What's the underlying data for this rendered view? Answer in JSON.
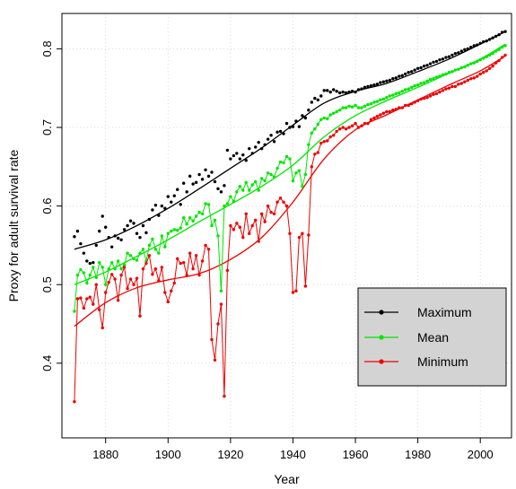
{
  "chart_data": {
    "type": "line",
    "title": "",
    "xlabel": "Year",
    "ylabel": "Proxy for adult survival rate",
    "xlim": [
      1866,
      2010
    ],
    "ylim": [
      0.305,
      0.845
    ],
    "xticks": [
      1880,
      1900,
      1920,
      1940,
      1960,
      1980,
      2000
    ],
    "yticks": [
      0.4,
      0.5,
      0.6,
      0.7,
      0.8
    ],
    "xtick_labels": [
      "1880",
      "1900",
      "1920",
      "1940",
      "1960",
      "1980",
      "2000"
    ],
    "ytick_labels": [
      "0.4",
      "0.5",
      "0.6",
      "0.7",
      "0.8"
    ],
    "grid": true,
    "legend": {
      "position": "bottom-right",
      "entries": [
        "Maximum",
        "Mean",
        "Minimum"
      ]
    },
    "series": [
      {
        "name": "Maximum",
        "color": "#000000",
        "style": "points",
        "x": [
          1870,
          1871,
          1872,
          1873,
          1874,
          1875,
          1876,
          1877,
          1878,
          1879,
          1880,
          1881,
          1882,
          1883,
          1884,
          1885,
          1886,
          1887,
          1888,
          1889,
          1890,
          1891,
          1892,
          1893,
          1894,
          1895,
          1896,
          1897,
          1898,
          1899,
          1900,
          1901,
          1902,
          1903,
          1904,
          1905,
          1906,
          1907,
          1908,
          1909,
          1910,
          1911,
          1912,
          1913,
          1914,
          1915,
          1916,
          1917,
          1918,
          1919,
          1920,
          1921,
          1922,
          1923,
          1924,
          1925,
          1926,
          1927,
          1928,
          1929,
          1930,
          1931,
          1932,
          1933,
          1934,
          1935,
          1936,
          1937,
          1938,
          1939,
          1940,
          1941,
          1942,
          1943,
          1944,
          1945,
          1946,
          1947,
          1948,
          1949,
          1950,
          1951,
          1952,
          1953,
          1954,
          1955,
          1956,
          1957,
          1958,
          1959,
          1960,
          1961,
          1962,
          1963,
          1964,
          1965,
          1966,
          1967,
          1968,
          1969,
          1970,
          1971,
          1972,
          1973,
          1974,
          1975,
          1976,
          1977,
          1978,
          1979,
          1980,
          1981,
          1982,
          1983,
          1984,
          1985,
          1986,
          1987,
          1988,
          1989,
          1990,
          1991,
          1992,
          1993,
          1994,
          1995,
          1996,
          1997,
          1998,
          1999,
          2000,
          2001,
          2002,
          2003,
          2004,
          2005,
          2006,
          2007,
          2008
        ],
        "y": [
          0.561,
          0.568,
          0.552,
          0.54,
          0.53,
          0.527,
          0.528,
          0.55,
          0.568,
          0.587,
          0.573,
          0.56,
          0.548,
          0.562,
          0.559,
          0.557,
          0.57,
          0.575,
          0.581,
          0.578,
          0.565,
          0.56,
          0.575,
          0.566,
          0.583,
          0.595,
          0.601,
          0.588,
          0.6,
          0.597,
          0.612,
          0.605,
          0.613,
          0.621,
          0.602,
          0.629,
          0.618,
          0.638,
          0.628,
          0.63,
          0.64,
          0.634,
          0.646,
          0.638,
          0.643,
          0.631,
          0.622,
          0.618,
          0.626,
          0.671,
          0.66,
          0.664,
          0.667,
          0.66,
          0.665,
          0.658,
          0.673,
          0.667,
          0.675,
          0.681,
          0.673,
          0.678,
          0.685,
          0.69,
          0.682,
          0.694,
          0.695,
          0.692,
          0.705,
          0.7,
          0.701,
          0.708,
          0.701,
          0.715,
          0.712,
          0.722,
          0.732,
          0.737,
          0.735,
          0.74,
          0.747,
          0.747,
          0.745,
          0.748,
          0.746,
          0.744,
          0.745,
          0.744,
          0.745,
          0.746,
          0.745,
          0.748,
          0.749,
          0.751,
          0.752,
          0.753,
          0.754,
          0.755,
          0.757,
          0.758,
          0.759,
          0.76,
          0.762,
          0.763,
          0.765,
          0.766,
          0.768,
          0.77,
          0.771,
          0.773,
          0.775,
          0.776,
          0.778,
          0.779,
          0.781,
          0.783,
          0.784,
          0.786,
          0.787,
          0.789,
          0.79,
          0.792,
          0.794,
          0.795,
          0.797,
          0.799,
          0.8,
          0.802,
          0.804,
          0.805,
          0.807,
          0.809,
          0.81,
          0.812,
          0.814,
          0.816,
          0.818,
          0.821,
          0.822
        ]
      },
      {
        "name": "Mean",
        "color": "#00e600",
        "style": "line-points",
        "x": [
          1870,
          1871,
          1872,
          1873,
          1874,
          1875,
          1876,
          1877,
          1878,
          1879,
          1880,
          1881,
          1882,
          1883,
          1884,
          1885,
          1886,
          1887,
          1888,
          1889,
          1890,
          1891,
          1892,
          1893,
          1894,
          1895,
          1896,
          1897,
          1898,
          1899,
          1900,
          1901,
          1902,
          1903,
          1904,
          1905,
          1906,
          1907,
          1908,
          1909,
          1910,
          1911,
          1912,
          1913,
          1914,
          1915,
          1916,
          1917,
          1918,
          1919,
          1920,
          1921,
          1922,
          1923,
          1924,
          1925,
          1926,
          1927,
          1928,
          1929,
          1930,
          1931,
          1932,
          1933,
          1934,
          1935,
          1936,
          1937,
          1938,
          1939,
          1940,
          1941,
          1942,
          1943,
          1944,
          1945,
          1946,
          1947,
          1948,
          1949,
          1950,
          1951,
          1952,
          1953,
          1954,
          1955,
          1956,
          1957,
          1958,
          1959,
          1960,
          1961,
          1962,
          1963,
          1964,
          1965,
          1966,
          1967,
          1968,
          1969,
          1970,
          1971,
          1972,
          1973,
          1974,
          1975,
          1976,
          1977,
          1978,
          1979,
          1980,
          1981,
          1982,
          1983,
          1984,
          1985,
          1986,
          1987,
          1988,
          1989,
          1990,
          1991,
          1992,
          1993,
          1994,
          1995,
          1996,
          1997,
          1998,
          1999,
          2000,
          2001,
          2002,
          2003,
          2004,
          2005,
          2006,
          2007,
          2008
        ],
        "y": [
          0.466,
          0.512,
          0.519,
          0.515,
          0.502,
          0.512,
          0.522,
          0.509,
          0.528,
          0.522,
          0.5,
          0.52,
          0.528,
          0.52,
          0.53,
          0.52,
          0.525,
          0.54,
          0.537,
          0.533,
          0.531,
          0.54,
          0.545,
          0.53,
          0.55,
          0.558,
          0.545,
          0.54,
          0.562,
          0.548,
          0.565,
          0.568,
          0.57,
          0.569,
          0.572,
          0.585,
          0.577,
          0.585,
          0.581,
          0.587,
          0.592,
          0.59,
          0.603,
          0.602,
          0.575,
          0.582,
          0.562,
          0.492,
          0.6,
          0.603,
          0.612,
          0.606,
          0.618,
          0.625,
          0.62,
          0.63,
          0.62,
          0.627,
          0.631,
          0.62,
          0.635,
          0.632,
          0.642,
          0.64,
          0.637,
          0.648,
          0.656,
          0.655,
          0.663,
          0.66,
          0.632,
          0.642,
          0.645,
          0.625,
          0.64,
          0.678,
          0.693,
          0.698,
          0.704,
          0.71,
          0.712,
          0.711,
          0.716,
          0.718,
          0.72,
          0.722,
          0.725,
          0.725,
          0.727,
          0.726,
          0.728,
          0.725,
          0.725,
          0.727,
          0.729,
          0.73,
          0.732,
          0.733,
          0.735,
          0.736,
          0.738,
          0.74,
          0.741,
          0.743,
          0.744,
          0.746,
          0.748,
          0.749,
          0.751,
          0.753,
          0.754,
          0.756,
          0.757,
          0.759,
          0.761,
          0.762,
          0.764,
          0.765,
          0.767,
          0.768,
          0.77,
          0.771,
          0.773,
          0.774,
          0.776,
          0.777,
          0.779,
          0.781,
          0.782,
          0.784,
          0.786,
          0.788,
          0.79,
          0.792,
          0.794,
          0.797,
          0.799,
          0.802,
          0.804
        ]
      },
      {
        "name": "Minimum",
        "color": "#ee0000",
        "style": "line-points",
        "x": [
          1870,
          1871,
          1872,
          1873,
          1874,
          1875,
          1876,
          1877,
          1878,
          1879,
          1880,
          1881,
          1882,
          1883,
          1884,
          1885,
          1886,
          1887,
          1888,
          1889,
          1890,
          1891,
          1892,
          1893,
          1894,
          1895,
          1896,
          1897,
          1898,
          1899,
          1900,
          1901,
          1902,
          1903,
          1904,
          1905,
          1906,
          1907,
          1908,
          1909,
          1910,
          1911,
          1912,
          1913,
          1914,
          1915,
          1916,
          1917,
          1918,
          1919,
          1920,
          1921,
          1922,
          1923,
          1924,
          1925,
          1926,
          1927,
          1928,
          1929,
          1930,
          1931,
          1932,
          1933,
          1934,
          1935,
          1936,
          1937,
          1938,
          1939,
          1940,
          1941,
          1942,
          1943,
          1944,
          1945,
          1946,
          1947,
          1948,
          1949,
          1950,
          1951,
          1952,
          1953,
          1954,
          1955,
          1956,
          1957,
          1958,
          1959,
          1960,
          1961,
          1962,
          1963,
          1964,
          1965,
          1966,
          1967,
          1968,
          1969,
          1970,
          1971,
          1972,
          1973,
          1974,
          1975,
          1976,
          1977,
          1978,
          1979,
          1980,
          1981,
          1982,
          1983,
          1984,
          1985,
          1986,
          1987,
          1988,
          1989,
          1990,
          1991,
          1992,
          1993,
          1994,
          1995,
          1996,
          1997,
          1998,
          1999,
          2000,
          2001,
          2002,
          2003,
          2004,
          2005,
          2006,
          2007,
          2008
        ],
        "y": [
          0.351,
          0.482,
          0.483,
          0.47,
          0.482,
          0.484,
          0.475,
          0.5,
          0.468,
          0.445,
          0.49,
          0.503,
          0.513,
          0.507,
          0.48,
          0.512,
          0.522,
          0.495,
          0.507,
          0.5,
          0.508,
          0.46,
          0.52,
          0.527,
          0.537,
          0.513,
          0.52,
          0.505,
          0.522,
          0.49,
          0.478,
          0.492,
          0.502,
          0.533,
          0.527,
          0.528,
          0.512,
          0.54,
          0.52,
          0.537,
          0.512,
          0.53,
          0.55,
          0.545,
          0.43,
          0.404,
          0.45,
          0.475,
          0.358,
          0.518,
          0.575,
          0.57,
          0.578,
          0.573,
          0.56,
          0.59,
          0.565,
          0.575,
          0.582,
          0.555,
          0.59,
          0.58,
          0.6,
          0.592,
          0.59,
          0.605,
          0.61,
          0.605,
          0.6,
          0.565,
          0.49,
          0.492,
          0.56,
          0.565,
          0.498,
          0.563,
          0.65,
          0.666,
          0.668,
          0.68,
          0.682,
          0.683,
          0.688,
          0.69,
          0.695,
          0.698,
          0.7,
          0.698,
          0.7,
          0.702,
          0.705,
          0.7,
          0.702,
          0.705,
          0.705,
          0.71,
          0.712,
          0.714,
          0.716,
          0.718,
          0.72,
          0.72,
          0.722,
          0.723,
          0.725,
          0.725,
          0.728,
          0.728,
          0.73,
          0.732,
          0.734,
          0.736,
          0.737,
          0.738,
          0.74,
          0.742,
          0.743,
          0.745,
          0.747,
          0.749,
          0.75,
          0.752,
          0.752,
          0.755,
          0.756,
          0.758,
          0.76,
          0.762,
          0.763,
          0.765,
          0.768,
          0.77,
          0.772,
          0.775,
          0.778,
          0.782,
          0.785,
          0.789,
          0.792
        ]
      }
    ],
    "trend_lines": [
      {
        "name": "Maximum",
        "color": "#000000",
        "x": [
          1870,
          1880,
          1890,
          1900,
          1910,
          1920,
          1930,
          1940,
          1950,
          1960,
          1970,
          1980,
          1990,
          2000,
          2008
        ],
        "y": [
          0.545,
          0.557,
          0.575,
          0.597,
          0.622,
          0.648,
          0.674,
          0.703,
          0.731,
          0.746,
          0.756,
          0.771,
          0.787,
          0.806,
          0.822
        ]
      },
      {
        "name": "Mean",
        "color": "#00e600",
        "x": [
          1870,
          1880,
          1890,
          1900,
          1910,
          1920,
          1930,
          1940,
          1950,
          1960,
          1970,
          1980,
          1990,
          2000,
          2008
        ],
        "y": [
          0.5,
          0.516,
          0.536,
          0.557,
          0.58,
          0.602,
          0.625,
          0.652,
          0.688,
          0.715,
          0.734,
          0.751,
          0.769,
          0.787,
          0.806
        ]
      },
      {
        "name": "Minimum",
        "color": "#ee0000",
        "x": [
          1870,
          1880,
          1890,
          1900,
          1910,
          1920,
          1930,
          1940,
          1950,
          1960,
          1970,
          1980,
          1990,
          2000,
          2008
        ],
        "y": [
          0.447,
          0.477,
          0.496,
          0.506,
          0.514,
          0.532,
          0.56,
          0.605,
          0.66,
          0.697,
          0.716,
          0.735,
          0.754,
          0.772,
          0.791
        ]
      }
    ]
  }
}
